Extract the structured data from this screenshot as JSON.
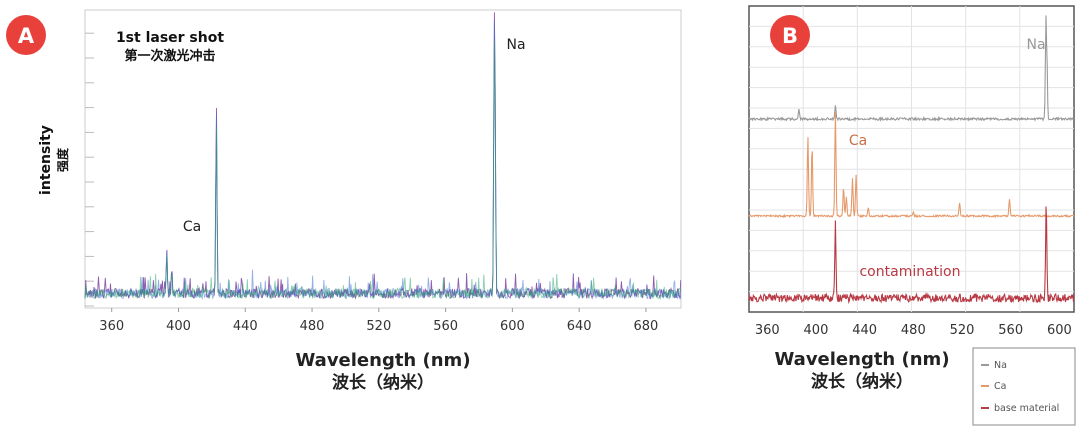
{
  "panels": [
    {
      "badge": "A",
      "annotation_en": "1st laser shot",
      "annotation_zh": "第一次激光冲击",
      "ylabel_en": "intensity",
      "ylabel_zh": "强度",
      "xlabel_en": "Wavelength (nm)",
      "xlabel_zh": "波长（纳米）"
    },
    {
      "badge": "B",
      "xlabel_en": "Wavelength (nm)",
      "xlabel_zh": "波长（纳米）"
    }
  ],
  "colors": {
    "badge": "#e8403a",
    "na": "#999999",
    "ca": "#e69a6c",
    "base_material": "#b83a44",
    "shot1_series": [
      "#7b3fa0",
      "#3a6fd1",
      "#2aa86b"
    ]
  },
  "chart_data": [
    {
      "type": "line",
      "panel": "A",
      "xlim": [
        344,
        701
      ],
      "x_ticks": [
        360,
        400,
        440,
        480,
        520,
        560,
        600,
        640,
        680
      ],
      "x_tick_labels": [
        "360",
        "400",
        "440",
        "480",
        "520",
        "560",
        "600",
        "640",
        "680"
      ],
      "y_scale": "relative intensity, no tick labels",
      "ylim": [
        0,
        1
      ],
      "grid": false,
      "peaks": [
        {
          "x": 393,
          "y": 0.18,
          "label": "Ca"
        },
        {
          "x": 396,
          "y": 0.12
        },
        {
          "x": 422.7,
          "y": 0.67
        },
        {
          "x": 589.2,
          "y": 1.0,
          "label": "Na"
        },
        {
          "x": 589.6,
          "y": 0.75
        }
      ],
      "annotations": [
        "Ca",
        "Na"
      ]
    },
    {
      "type": "line",
      "panel": "B",
      "xlim": [
        345,
        612
      ],
      "x_ticks": [
        360,
        400,
        440,
        480,
        520,
        560,
        600
      ],
      "x_tick_labels": [
        "360",
        "400",
        "440",
        "480",
        "520",
        "560",
        "600"
      ],
      "y_scale": "relative intensity, traces vertically offset, no tick labels",
      "grid": true,
      "legend_position": "bottom-right",
      "series": [
        {
          "name": "Na",
          "annotation": "Na",
          "baseline": 0.15,
          "peaks": [
            {
              "x": 386,
              "y": 0.05
            },
            {
              "x": 416,
              "y": 0.07
            },
            {
              "x": 589.0,
              "y": 0.55
            },
            {
              "x": 589.6,
              "y": 0.4
            }
          ]
        },
        {
          "name": "Ca",
          "annotation": "Ca",
          "baseline": 0.0,
          "peaks": [
            {
              "x": 393.4,
              "y": 0.42
            },
            {
              "x": 396.8,
              "y": 0.37
            },
            {
              "x": 416,
              "y": 0.55
            },
            {
              "x": 422.7,
              "y": 0.15
            },
            {
              "x": 425,
              "y": 0.1
            },
            {
              "x": 430,
              "y": 0.2
            },
            {
              "x": 433,
              "y": 0.22
            },
            {
              "x": 443,
              "y": 0.04
            },
            {
              "x": 480,
              "y": 0.02
            },
            {
              "x": 518,
              "y": 0.07
            },
            {
              "x": 559,
              "y": 0.09
            }
          ]
        },
        {
          "name": "base material",
          "annotation": "contamination",
          "baseline": 0.0,
          "peaks": [
            {
              "x": 416,
              "y": 0.4
            },
            {
              "x": 589.2,
              "y": 0.5
            }
          ]
        }
      ]
    }
  ]
}
